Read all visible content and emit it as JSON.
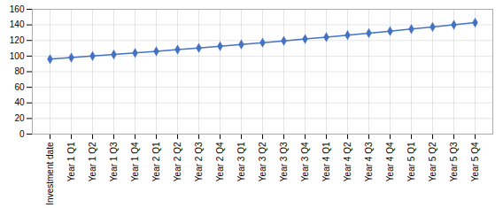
{
  "chart_data": {
    "type": "line",
    "categories": [
      "Investment date",
      "Year 1 Q1",
      "Year 1 Q2",
      "Year 1 Q3",
      "Year 1 Q4",
      "Year 2 Q1",
      "Year 2 Q2",
      "Year 2 Q3",
      "Year 2 Q4",
      "Year 3 Q1",
      "Year 3 Q2",
      "Year 3 Q3",
      "Year 3 Q4",
      "Year 4 Q1",
      "Year 4 Q2",
      "Year 4 Q3",
      "Year 4 Q4",
      "Year 5 Q1",
      "Year 5 Q2",
      "Year 5 Q3",
      "Year 5 Q4"
    ],
    "values": [
      96.15,
      98.08,
      100.04,
      102.04,
      104.08,
      106.16,
      108.28,
      110.45,
      112.66,
      114.91,
      117.21,
      119.55,
      121.94,
      124.38,
      126.87,
      129.4,
      131.99,
      134.63,
      137.32,
      140.07,
      142.87
    ],
    "color": "#4472C4",
    "marker": "diamond",
    "ylim": [
      0,
      160
    ],
    "yticks": [
      0,
      20,
      40,
      60,
      80,
      100,
      120,
      140,
      160
    ],
    "grid": true
  }
}
